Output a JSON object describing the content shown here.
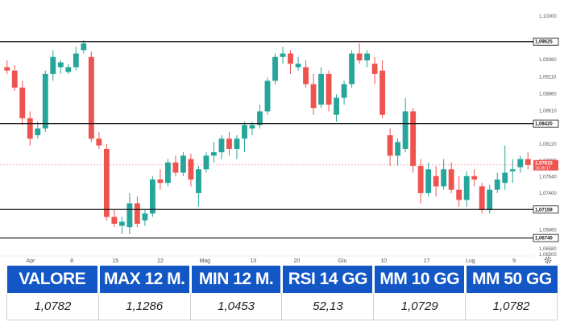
{
  "chart_data": {
    "type": "candlestick",
    "title": "",
    "x_ticks": [
      "Apr",
      "8",
      "15",
      "22",
      "Mag",
      "13",
      "20",
      "Giu",
      "10",
      "17",
      "Lug",
      "9"
    ],
    "y_ticks": [
      "1,10000",
      "1,09625",
      "1,09360",
      "1,09110",
      "1,08860",
      "1,08610",
      "1,08420",
      "1,08120",
      "1,07880",
      "1,07640",
      "1,07400",
      "1,07159",
      "1,06860",
      "1,06740",
      "1,06580",
      "1,06500"
    ],
    "ylim": [
      1.065,
      1.1
    ],
    "levels": [
      {
        "value": 1.09625,
        "label": "1,09625"
      },
      {
        "value": 1.0842,
        "label": "1,08420"
      },
      {
        "value": 1.07159,
        "label": "1,07159"
      },
      {
        "value": 1.0674,
        "label": "1,06740"
      }
    ],
    "current_price": {
      "value": 1.07815,
      "label": "1,07815",
      "time": "16:35:17"
    },
    "up_color": "#26a69a",
    "down_color": "#ef5350",
    "candles": [
      {
        "o": 1.0925,
        "h": 1.0935,
        "l": 1.0915,
        "c": 1.092
      },
      {
        "o": 1.092,
        "h": 1.0928,
        "l": 1.089,
        "c": 1.0895
      },
      {
        "o": 1.0895,
        "h": 1.0905,
        "l": 1.084,
        "c": 1.085
      },
      {
        "o": 1.085,
        "h": 1.086,
        "l": 1.081,
        "c": 1.082
      },
      {
        "o": 1.0825,
        "h": 1.0845,
        "l": 1.082,
        "c": 1.0835
      },
      {
        "o": 1.0835,
        "h": 1.092,
        "l": 1.083,
        "c": 1.0915
      },
      {
        "o": 1.0915,
        "h": 1.095,
        "l": 1.0905,
        "c": 1.094
      },
      {
        "o": 1.0925,
        "h": 1.0935,
        "l": 1.0915,
        "c": 1.0932
      },
      {
        "o": 1.0918,
        "h": 1.093,
        "l": 1.0915,
        "c": 1.0925
      },
      {
        "o": 1.0925,
        "h": 1.0955,
        "l": 1.092,
        "c": 1.0945
      },
      {
        "o": 1.095,
        "h": 1.0965,
        "l": 1.0945,
        "c": 1.096
      },
      {
        "o": 1.094,
        "h": 1.0948,
        "l": 1.0815,
        "c": 1.082
      },
      {
        "o": 1.082,
        "h": 1.083,
        "l": 1.0805,
        "c": 1.081
      },
      {
        "o": 1.0805,
        "h": 1.0812,
        "l": 1.07,
        "c": 1.0705
      },
      {
        "o": 1.0705,
        "h": 1.0715,
        "l": 1.069,
        "c": 1.0695
      },
      {
        "o": 1.0692,
        "h": 1.0705,
        "l": 1.068,
        "c": 1.0698
      },
      {
        "o": 1.069,
        "h": 1.074,
        "l": 1.068,
        "c": 1.0725
      },
      {
        "o": 1.0725,
        "h": 1.0735,
        "l": 1.069,
        "c": 1.0695
      },
      {
        "o": 1.07,
        "h": 1.0715,
        "l": 1.0692,
        "c": 1.071
      },
      {
        "o": 1.071,
        "h": 1.0765,
        "l": 1.0705,
        "c": 1.076
      },
      {
        "o": 1.076,
        "h": 1.0775,
        "l": 1.0745,
        "c": 1.0755
      },
      {
        "o": 1.0755,
        "h": 1.079,
        "l": 1.075,
        "c": 1.0785
      },
      {
        "o": 1.0785,
        "h": 1.0795,
        "l": 1.0765,
        "c": 1.077
      },
      {
        "o": 1.077,
        "h": 1.08,
        "l": 1.0765,
        "c": 1.0795
      },
      {
        "o": 1.079,
        "h": 1.0798,
        "l": 1.075,
        "c": 1.076
      },
      {
        "o": 1.074,
        "h": 1.078,
        "l": 1.072,
        "c": 1.0775
      },
      {
        "o": 1.0775,
        "h": 1.08,
        "l": 1.077,
        "c": 1.0795
      },
      {
        "o": 1.0795,
        "h": 1.0815,
        "l": 1.0785,
        "c": 1.08
      },
      {
        "o": 1.08,
        "h": 1.0825,
        "l": 1.079,
        "c": 1.082
      },
      {
        "o": 1.082,
        "h": 1.083,
        "l": 1.0795,
        "c": 1.0805
      },
      {
        "o": 1.0805,
        "h": 1.0825,
        "l": 1.079,
        "c": 1.082
      },
      {
        "o": 1.082,
        "h": 1.0845,
        "l": 1.08,
        "c": 1.084
      },
      {
        "o": 1.0835,
        "h": 1.0845,
        "l": 1.0825,
        "c": 1.084
      },
      {
        "o": 1.084,
        "h": 1.087,
        "l": 1.0835,
        "c": 1.086
      },
      {
        "o": 1.086,
        "h": 1.091,
        "l": 1.0855,
        "c": 1.0905
      },
      {
        "o": 1.0905,
        "h": 1.0945,
        "l": 1.09,
        "c": 1.094
      },
      {
        "o": 1.094,
        "h": 1.0955,
        "l": 1.093,
        "c": 1.0945
      },
      {
        "o": 1.0945,
        "h": 1.095,
        "l": 1.0915,
        "c": 1.093
      },
      {
        "o": 1.0925,
        "h": 1.094,
        "l": 1.092,
        "c": 1.093
      },
      {
        "o": 1.0925,
        "h": 1.0935,
        "l": 1.0895,
        "c": 1.09
      },
      {
        "o": 1.09,
        "h": 1.0915,
        "l": 1.0855,
        "c": 1.0865
      },
      {
        "o": 1.087,
        "h": 1.0925,
        "l": 1.0865,
        "c": 1.0915
      },
      {
        "o": 1.0915,
        "h": 1.092,
        "l": 1.086,
        "c": 1.087
      },
      {
        "o": 1.0855,
        "h": 1.0885,
        "l": 1.0845,
        "c": 1.088
      },
      {
        "o": 1.088,
        "h": 1.0905,
        "l": 1.087,
        "c": 1.09
      },
      {
        "o": 1.09,
        "h": 1.095,
        "l": 1.0895,
        "c": 1.0945
      },
      {
        "o": 1.0945,
        "h": 1.096,
        "l": 1.093,
        "c": 1.0935
      },
      {
        "o": 1.0935,
        "h": 1.095,
        "l": 1.0925,
        "c": 1.0945
      },
      {
        "o": 1.093,
        "h": 1.094,
        "l": 1.09,
        "c": 1.0915
      },
      {
        "o": 1.092,
        "h": 1.0935,
        "l": 1.085,
        "c": 1.0855
      },
      {
        "o": 1.0825,
        "h": 1.0835,
        "l": 1.078,
        "c": 1.0795
      },
      {
        "o": 1.0795,
        "h": 1.082,
        "l": 1.078,
        "c": 1.0815
      },
      {
        "o": 1.0805,
        "h": 1.088,
        "l": 1.08,
        "c": 1.086
      },
      {
        "o": 1.086,
        "h": 1.0865,
        "l": 1.077,
        "c": 1.078
      },
      {
        "o": 1.078,
        "h": 1.079,
        "l": 1.0725,
        "c": 1.074
      },
      {
        "o": 1.074,
        "h": 1.0785,
        "l": 1.0735,
        "c": 1.0775
      },
      {
        "o": 1.0765,
        "h": 1.078,
        "l": 1.0735,
        "c": 1.075
      },
      {
        "o": 1.075,
        "h": 1.079,
        "l": 1.0745,
        "c": 1.0775
      },
      {
        "o": 1.0775,
        "h": 1.0785,
        "l": 1.074,
        "c": 1.0745
      },
      {
        "o": 1.0745,
        "h": 1.0765,
        "l": 1.072,
        "c": 1.073
      },
      {
        "o": 1.073,
        "h": 1.0772,
        "l": 1.072,
        "c": 1.0765
      },
      {
        "o": 1.0765,
        "h": 1.0775,
        "l": 1.075,
        "c": 1.076
      },
      {
        "o": 1.075,
        "h": 1.0755,
        "l": 1.071,
        "c": 1.0715
      },
      {
        "o": 1.0715,
        "h": 1.0752,
        "l": 1.071,
        "c": 1.0745
      },
      {
        "o": 1.0745,
        "h": 1.077,
        "l": 1.074,
        "c": 1.076
      },
      {
        "o": 1.0755,
        "h": 1.081,
        "l": 1.0745,
        "c": 1.077
      },
      {
        "o": 1.0772,
        "h": 1.079,
        "l": 1.0755,
        "c": 1.0775
      },
      {
        "o": 1.0778,
        "h": 1.0795,
        "l": 1.077,
        "c": 1.079
      },
      {
        "o": 1.079,
        "h": 1.08,
        "l": 1.0775,
        "c": 1.07815
      }
    ]
  },
  "stats": {
    "headers": [
      "VALORE",
      "MAX 12 M.",
      "MIN 12 M.",
      "RSI 14 GG",
      "MM 10 GG",
      "MM 50 GG"
    ],
    "values": [
      "1,0782",
      "1,1286",
      "1,0453",
      "52,13",
      "1,0729",
      "1,0782"
    ]
  },
  "icons": {
    "settings": "gear-icon"
  }
}
